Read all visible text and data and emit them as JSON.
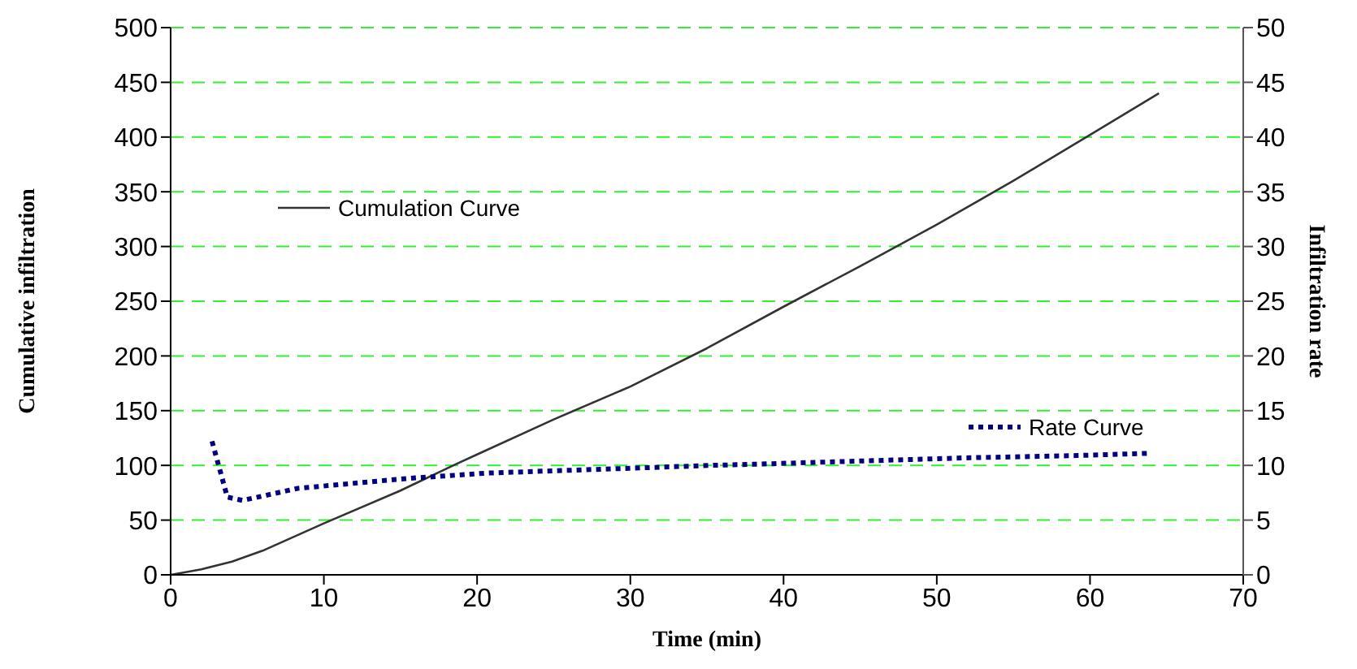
{
  "chart_data": {
    "type": "line",
    "xlabel": "Time (min)",
    "ylabel": "Cumulative infiltration",
    "y2label": "Infiltration rate",
    "series": [
      {
        "name": "Cumulation Curve",
        "color": "#333333",
        "line_style": "solid",
        "x": [
          0,
          2,
          4,
          6,
          10,
          15,
          18.6,
          20,
          25,
          30,
          35,
          40,
          45,
          50,
          55,
          60,
          64.5
        ],
        "values": [
          0,
          5,
          12,
          22,
          47,
          77,
          101,
          110,
          142,
          172,
          207,
          245,
          282,
          320,
          360,
          402,
          440
        ]
      },
      {
        "name": "Rate Curve",
        "color": "#000080",
        "line_style": "dotted",
        "axis": "y2",
        "x": [
          2.7,
          3.7,
          4.7,
          8.3,
          15.4,
          20.7,
          31.3,
          35.2,
          38,
          45,
          52.2,
          59.2,
          63.8
        ],
        "values": [
          12.2,
          7.1,
          6.8,
          7.9,
          8.8,
          9.3,
          9.8,
          10,
          10.1,
          10.4,
          10.7,
          10.9,
          11.1
        ]
      }
    ],
    "xlim": [
      0,
      70
    ],
    "xticks": [
      0,
      10,
      20,
      30,
      40,
      50,
      60,
      70
    ],
    "ylim": [
      0,
      500
    ],
    "yticks": [
      0,
      50,
      100,
      150,
      200,
      250,
      300,
      350,
      400,
      450,
      500
    ],
    "y2lim": [
      0,
      50
    ],
    "y2ticks": [
      0,
      5,
      10,
      15,
      20,
      25,
      30,
      35,
      40,
      45,
      50
    ],
    "grid": "y",
    "legend": "left",
    "marker": "none"
  }
}
